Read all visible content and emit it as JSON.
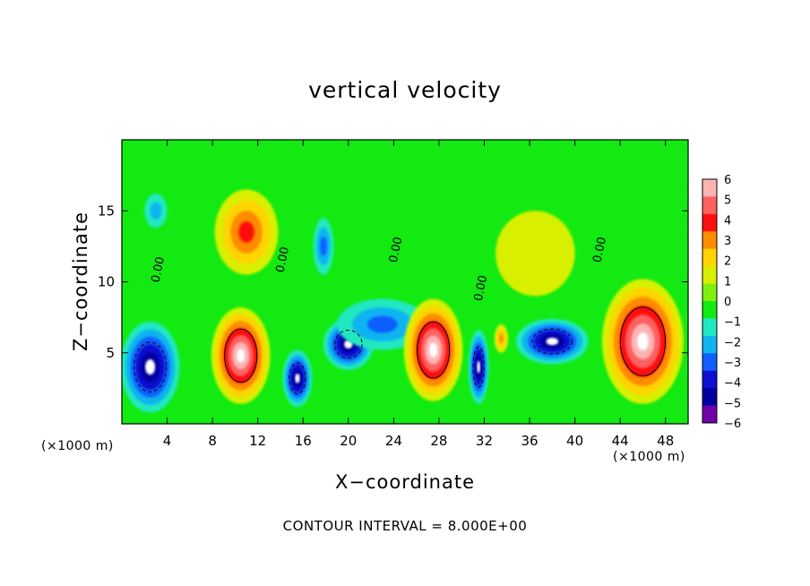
{
  "chart_data": {
    "type": "heatmap",
    "title": "vertical velocity",
    "xlabel": "X−coordinate",
    "ylabel": "Z−coordinate",
    "x_unit": "(×1000 m)",
    "x_ticks": [
      4,
      8,
      12,
      16,
      20,
      24,
      28,
      32,
      36,
      40,
      44,
      48
    ],
    "y_ticks": [
      5,
      10,
      15
    ],
    "xlim": [
      0,
      50
    ],
    "ylim": [
      0,
      20
    ],
    "colorbar": {
      "levels": [
        6,
        5,
        4,
        3,
        2,
        1,
        0,
        -1,
        -2,
        -3,
        -4,
        -5,
        -6
      ],
      "labels": [
        "6",
        "5",
        "4",
        "3",
        "2",
        "1",
        "0",
        "−1",
        "−2",
        "−3",
        "−4",
        "−5",
        "−6"
      ],
      "colors": [
        "#ffb4b4",
        "#ff6060",
        "#ff1010",
        "#ff8c00",
        "#ffd400",
        "#d8f000",
        "#80ef10",
        "#12ea12",
        "#20e8c0",
        "#10b4f0",
        "#1060ff",
        "#1010d0",
        "#0000a0",
        "#7000a8"
      ]
    },
    "zero_contour_labels": [
      {
        "x": 3.5,
        "y": 10.8,
        "text": "0.00"
      },
      {
        "x": 14.5,
        "y": 11.5,
        "text": "0.00"
      },
      {
        "x": 24.5,
        "y": 12.2,
        "text": "0.00"
      },
      {
        "x": 32.0,
        "y": 9.5,
        "text": "0.00"
      },
      {
        "x": 42.5,
        "y": 12.2,
        "text": "0.00"
      }
    ],
    "contour_interval_note": "CONTOUR INTERVAL = 8.000E+00",
    "updrafts": [
      {
        "x": 10.5,
        "z": 4.8,
        "rx": 2.6,
        "rz": 3.4,
        "peak": 14
      },
      {
        "x": 27.5,
        "z": 5.2,
        "rx": 2.6,
        "rz": 3.6,
        "peak": 13
      },
      {
        "x": 46.0,
        "z": 5.8,
        "rx": 3.6,
        "rz": 4.4,
        "peak": 16
      },
      {
        "x": 11.0,
        "z": 13.5,
        "rx": 2.8,
        "rz": 3.0,
        "peak": 3.5
      },
      {
        "x": 33.5,
        "z": 6.0,
        "rx": 0.6,
        "rz": 1.0,
        "peak": 3
      },
      {
        "x": 36.5,
        "z": 12.0,
        "rx": 3.5,
        "rz": 3.0,
        "peak": 1
      }
    ],
    "downdrafts": [
      {
        "x": 2.5,
        "z": 4.0,
        "rx": 2.6,
        "rz": 3.2,
        "peak": -14
      },
      {
        "x": 15.5,
        "z": 3.2,
        "rx": 1.3,
        "rz": 2.0,
        "peak": -9
      },
      {
        "x": 20.0,
        "z": 5.6,
        "rx": 2.2,
        "rz": 1.8,
        "peak": -10
      },
      {
        "x": 31.5,
        "z": 4.0,
        "rx": 0.9,
        "rz": 2.6,
        "peak": -9
      },
      {
        "x": 38.0,
        "z": 5.8,
        "rx": 3.2,
        "rz": 1.6,
        "peak": -10
      },
      {
        "x": 3.0,
        "z": 15.0,
        "rx": 1.0,
        "rz": 1.2,
        "peak": -2
      },
      {
        "x": 17.8,
        "z": 12.5,
        "rx": 0.9,
        "rz": 2.0,
        "peak": -3
      },
      {
        "x": 23.0,
        "z": 7.0,
        "rx": 4.0,
        "rz": 1.8,
        "peak": -3
      }
    ]
  }
}
